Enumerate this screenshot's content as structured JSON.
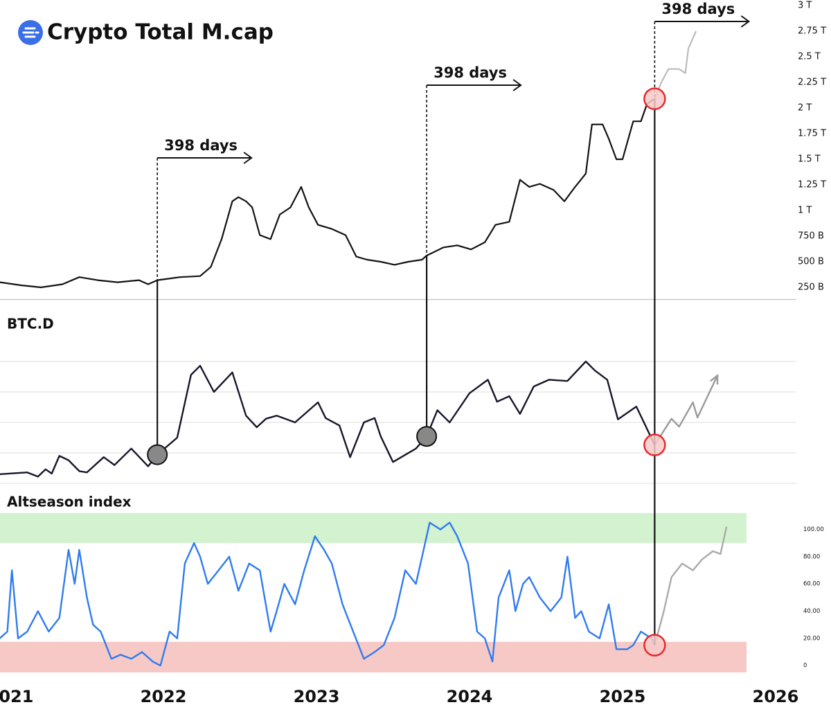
{
  "chart_data": [
    {
      "type": "line",
      "title": "Crypto Total M.cap",
      "xlim": [
        2020.932,
        2026.136
      ],
      "ylim": [
        135,
        3054
      ],
      "yticks": [
        {
          "value": 250,
          "label": "250 B"
        },
        {
          "value": 500,
          "label": "500 B"
        },
        {
          "value": 750,
          "label": "750 B"
        },
        {
          "value": 1000,
          "label": "1 T"
        },
        {
          "value": 1250,
          "label": "1.25 T"
        },
        {
          "value": 1500,
          "label": "1.5 T"
        },
        {
          "value": 1750,
          "label": "1.75 T"
        },
        {
          "value": 2000,
          "label": "2 T"
        },
        {
          "value": 2250,
          "label": "2.25 T"
        },
        {
          "value": 2500,
          "label": "2.5 T"
        },
        {
          "value": 2750,
          "label": "2.75 T"
        },
        {
          "value": 3000,
          "label": "3 T"
        }
      ],
      "series": [
        {
          "color": "#111111",
          "x": [
            2020.93,
            2021.07,
            2021.2,
            2021.34,
            2021.45,
            2021.57,
            2021.7,
            2021.84,
            2021.9,
            2021.96,
            2022.11,
            2022.24,
            2022.31,
            2022.38,
            2022.45,
            2022.49,
            2022.54,
            2022.58,
            2022.63,
            2022.7,
            2022.76,
            2022.83,
            2022.9,
            2022.95,
            2023.01,
            2023.1,
            2023.19,
            2023.26,
            2023.33,
            2023.42,
            2023.51,
            2023.6,
            2023.69,
            2023.72,
            2023.83,
            2023.92,
            2024.01,
            2024.1,
            2024.17,
            2024.26,
            2024.33,
            2024.39,
            2024.46,
            2024.55,
            2024.62,
            2024.69,
            2024.76,
            2024.8,
            2024.87,
            2024.91,
            2024.96,
            2025.0,
            2025.07,
            2025.12,
            2025.16,
            2025.21
          ],
          "values": [
            300,
            270,
            250,
            280,
            350,
            320,
            300,
            320,
            280,
            320,
            350,
            360,
            450,
            720,
            1090,
            1130,
            1090,
            1030,
            760,
            720,
            960,
            1030,
            1230,
            1030,
            860,
            820,
            760,
            550,
            520,
            500,
            470,
            500,
            520,
            560,
            640,
            660,
            620,
            690,
            860,
            890,
            1300,
            1230,
            1260,
            1200,
            1090,
            1230,
            1360,
            1840,
            1840,
            1700,
            1500,
            1500,
            1870,
            1870,
            2040,
            2090
          ]
        },
        {
          "color": "#bbbbbb",
          "x": [
            2025.21,
            2025.25,
            2025.3,
            2025.37,
            2025.41,
            2025.43,
            2025.48
          ],
          "values": [
            2090,
            2240,
            2380,
            2380,
            2340,
            2580,
            2750
          ]
        }
      ],
      "annotations": [
        {
          "text": "398 days",
          "x": 2021.96,
          "marker_color": "#888888"
        },
        {
          "text": "398 days",
          "x": 2023.72,
          "marker_color": "#888888"
        },
        {
          "text": "398 days",
          "x": 2025.21,
          "marker_color": "#f7c9c9"
        }
      ]
    },
    {
      "type": "line",
      "title": "BTC.D",
      "xlim": [
        2020.932,
        2026.136
      ],
      "ylim": [
        38,
        62
      ],
      "yticks": [
        40,
        45,
        50,
        55,
        60
      ],
      "grid": true,
      "tick_labels": false,
      "series": [
        {
          "color": "#16162a",
          "x": [
            2020.93,
            2021.11,
            2021.18,
            2021.23,
            2021.27,
            2021.32,
            2021.38,
            2021.45,
            2021.5,
            2021.61,
            2021.68,
            2021.79,
            2021.9,
            2021.96,
            2022.09,
            2022.18,
            2022.24,
            2022.33,
            2022.45,
            2022.54,
            2022.61,
            2022.67,
            2022.74,
            2022.86,
            2023.01,
            2023.06,
            2023.15,
            2023.22,
            2023.31,
            2023.38,
            2023.42,
            2023.5,
            2023.65,
            2023.72,
            2023.79,
            2023.87,
            2024.0,
            2024.12,
            2024.18,
            2024.26,
            2024.33,
            2024.42,
            2024.52,
            2024.64,
            2024.76,
            2024.82,
            2024.9,
            2024.97,
            2025.09,
            2025.21
          ],
          "values": [
            41.5,
            41.8,
            41.1,
            42.3,
            41.6,
            44.5,
            43.8,
            42.0,
            41.8,
            44.3,
            43.0,
            45.7,
            42.8,
            44.7,
            47.5,
            57.8,
            59.3,
            55.0,
            58.2,
            51.1,
            49.2,
            50.6,
            51.1,
            50.0,
            53.3,
            50.7,
            49.5,
            44.3,
            50.0,
            50.7,
            47.7,
            43.5,
            45.7,
            47.7,
            52.0,
            50.0,
            54.8,
            57.0,
            53.4,
            54.3,
            51.4,
            55.9,
            57.0,
            56.8,
            60.0,
            58.5,
            57.0,
            50.5,
            52.6,
            46.3
          ]
        },
        {
          "color": "#9a9a9a",
          "arrow": true,
          "x": [
            2025.21,
            2025.32,
            2025.37,
            2025.46,
            2025.49,
            2025.62
          ],
          "values": [
            46.3,
            50.6,
            49.3,
            53.3,
            50.8,
            57.7
          ]
        }
      ]
    },
    {
      "type": "line",
      "title": "Altseason index",
      "xlim": [
        2020.932,
        2026.136
      ],
      "ylim": [
        -7,
        113
      ],
      "xticks": [
        2021,
        2022,
        2023,
        2024,
        2025,
        2026
      ],
      "yticks": [
        0,
        {
          "value": 20,
          "label": "20.00"
        },
        {
          "value": 40,
          "label": "40.00"
        },
        {
          "value": 60,
          "label": "60.00"
        },
        {
          "value": 80,
          "label": "80.00"
        },
        {
          "value": 100,
          "label": "100.00"
        }
      ],
      "bands": [
        {
          "from": 90,
          "to": 112,
          "color": "#d3f2cf"
        },
        {
          "from": -5,
          "to": 17.5,
          "color": "#f6c9c6"
        }
      ],
      "series": [
        {
          "color": "#2f7bef",
          "x": [
            2020.93,
            2020.98,
            2021.01,
            2021.05,
            2021.11,
            2021.18,
            2021.25,
            2021.32,
            2021.38,
            2021.42,
            2021.45,
            2021.5,
            2021.54,
            2021.59,
            2021.66,
            2021.72,
            2021.79,
            2021.86,
            2021.93,
            2021.98,
            2022.04,
            2022.09,
            2022.14,
            2022.2,
            2022.24,
            2022.29,
            2022.36,
            2022.43,
            2022.49,
            2022.56,
            2022.63,
            2022.7,
            2022.74,
            2022.79,
            2022.86,
            2022.92,
            2022.99,
            2023.05,
            2023.1,
            2023.17,
            2023.24,
            2023.31,
            2023.38,
            2023.44,
            2023.51,
            2023.58,
            2023.65,
            2023.69,
            2023.74,
            2023.81,
            2023.87,
            2023.92,
            2023.99,
            2024.05,
            2024.1,
            2024.15,
            2024.19,
            2024.26,
            2024.3,
            2024.35,
            2024.39,
            2024.46,
            2024.53,
            2024.6,
            2024.64,
            2024.69,
            2024.73,
            2024.78,
            2024.85,
            2024.91,
            2024.96,
            2025.03,
            2025.07,
            2025.12,
            2025.19,
            2025.21
          ],
          "values": [
            20,
            25,
            70,
            20,
            25,
            40,
            25,
            35,
            85,
            60,
            85,
            50,
            30,
            25,
            5,
            8,
            5,
            10,
            3,
            0,
            25,
            20,
            75,
            90,
            80,
            60,
            70,
            80,
            55,
            75,
            70,
            25,
            40,
            60,
            45,
            70,
            95,
            85,
            75,
            45,
            25,
            5,
            10,
            15,
            35,
            70,
            60,
            80,
            105,
            100,
            105,
            95,
            75,
            25,
            20,
            3,
            50,
            70,
            40,
            60,
            65,
            50,
            40,
            50,
            80,
            35,
            40,
            25,
            20,
            45,
            12,
            12,
            15,
            25,
            20,
            15
          ]
        },
        {
          "color": "#aaaaaa",
          "x": [
            2025.21,
            2025.27,
            2025.32,
            2025.39,
            2025.46,
            2025.52,
            2025.59,
            2025.64,
            2025.68
          ],
          "values": [
            15,
            40,
            65,
            75,
            70,
            78,
            84,
            82,
            102
          ]
        }
      ]
    }
  ]
}
